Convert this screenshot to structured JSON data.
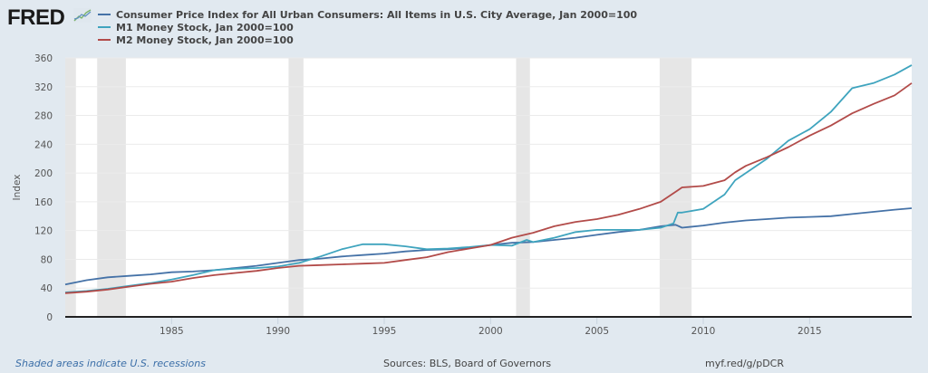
{
  "header": {
    "logo_text": "FRED",
    "logo_icon": "chart-line-icon"
  },
  "chart_data": {
    "type": "line",
    "title": "",
    "xlabel": "",
    "ylabel": "Index",
    "xlim": [
      1980,
      2019.8
    ],
    "ylim": [
      0,
      360
    ],
    "yticks": [
      0,
      40,
      80,
      120,
      160,
      200,
      240,
      280,
      320,
      360
    ],
    "xticks": [
      1985,
      1990,
      1995,
      2000,
      2005,
      2010,
      2015
    ],
    "grid": true,
    "legend_position": "top-left",
    "recessions": [
      [
        1980.0,
        1980.5
      ],
      [
        1981.5,
        1982.85
      ],
      [
        1990.5,
        1991.2
      ],
      [
        2001.2,
        2001.85
      ],
      [
        2007.95,
        2009.45
      ]
    ],
    "series": [
      {
        "name": "Consumer Price Index for All Urban Consumers: All Items in U.S. City Average, Jan 2000=100",
        "color": "#4572a7",
        "x": [
          1980,
          1981,
          1982,
          1983,
          1984,
          1985,
          1986,
          1987,
          1988,
          1989,
          1990,
          1991,
          1992,
          1993,
          1994,
          1995,
          1996,
          1997,
          1998,
          1999,
          2000,
          2001,
          2002,
          2003,
          2004,
          2005,
          2006,
          2007,
          2008,
          2008.7,
          2009,
          2010,
          2011,
          2012,
          2013,
          2014,
          2015,
          2016,
          2017,
          2018,
          2019,
          2019.8
        ],
        "y": [
          45,
          51,
          55,
          57,
          59,
          62,
          63,
          65,
          68,
          71,
          75,
          79,
          81,
          84,
          86,
          88,
          91,
          93,
          94,
          96,
          100,
          103,
          104,
          107,
          110,
          114,
          118,
          121,
          126,
          128,
          124,
          127,
          131,
          134,
          136,
          138,
          139,
          140,
          143,
          146,
          149,
          151
        ]
      },
      {
        "name": "M1 Money Stock, Jan 2000=100",
        "color": "#3fa4be",
        "x": [
          1980,
          1981,
          1982,
          1983,
          1984,
          1985,
          1986,
          1987,
          1988,
          1989,
          1990,
          1991,
          1992,
          1993,
          1994,
          1995,
          1996,
          1997,
          1998,
          1999,
          2000,
          2001,
          2001.7,
          2002,
          2003,
          2004,
          2005,
          2006,
          2007,
          2008,
          2008.6,
          2008.8,
          2009,
          2010,
          2011,
          2011.5,
          2012,
          2013,
          2014,
          2015,
          2016,
          2017,
          2018,
          2019,
          2019.8
        ],
        "y": [
          34,
          36,
          39,
          43,
          47,
          52,
          58,
          65,
          67,
          68,
          70,
          75,
          84,
          94,
          101,
          101,
          98,
          94,
          95,
          97,
          100,
          99,
          107,
          104,
          110,
          118,
          121,
          121,
          121,
          124,
          130,
          145,
          145,
          150,
          170,
          190,
          200,
          220,
          245,
          261,
          285,
          318,
          325,
          337,
          350
        ]
      },
      {
        "name": "M2 Money Stock, Jan 2000=100",
        "color": "#b24b49",
        "x": [
          1980,
          1981,
          1982,
          1983,
          1984,
          1985,
          1986,
          1987,
          1988,
          1989,
          1990,
          1991,
          1992,
          1993,
          1994,
          1995,
          1996,
          1997,
          1998,
          1999,
          2000,
          2001,
          2002,
          2003,
          2004,
          2005,
          2006,
          2007,
          2008,
          2008.8,
          2009,
          2010,
          2011,
          2011.5,
          2012,
          2013,
          2014,
          2015,
          2016,
          2017,
          2018,
          2019,
          2019.8
        ],
        "y": [
          33,
          35,
          38,
          42,
          46,
          49,
          54,
          58,
          61,
          64,
          68,
          71,
          72,
          73,
          74,
          75,
          79,
          83,
          90,
          95,
          100,
          110,
          117,
          126,
          132,
          136,
          142,
          150,
          160,
          176,
          180,
          182,
          190,
          201,
          210,
          222,
          236,
          252,
          266,
          283,
          296,
          308,
          325
        ]
      }
    ]
  },
  "footer": {
    "recession_note": "Shaded areas indicate U.S. recessions",
    "sources": "Sources: BLS, Board of Governors",
    "short_link": "myf.red/g/pDCR"
  }
}
